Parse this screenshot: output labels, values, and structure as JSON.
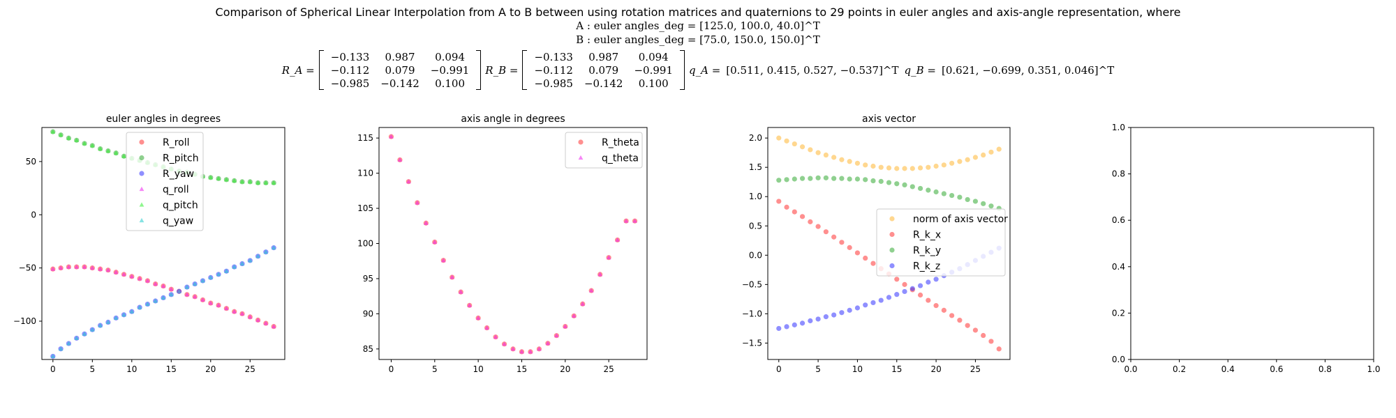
{
  "header": {
    "title": "Comparison of Spherical Linear Interpolation from A to B between using rotation matrices and quaternions to 29 points in euler angles and axis-angle representation, where",
    "eq_a": "A : euler angles_deg = [125.0, 100.0, 40.0]^T",
    "eq_b": "B : euler angles_deg = [75.0, 150.0, 150.0]^T",
    "ra_label": "R_A =",
    "rb_label": "R_B =",
    "qa_label": "q_A =",
    "qb_label": "q_B =",
    "ra_rows": [
      [
        "−0.133",
        "0.987",
        "0.094"
      ],
      [
        "−0.112",
        "0.079",
        "−0.991"
      ],
      [
        "−0.985",
        "−0.142",
        "0.100"
      ]
    ],
    "rb_rows": [
      [
        "−0.133",
        "0.987",
        "0.094"
      ],
      [
        "−0.112",
        "0.079",
        "−0.991"
      ],
      [
        "−0.985",
        "−0.142",
        "0.100"
      ]
    ],
    "qa_vec": "[0.511, 0.415, 0.527, −0.537]^T",
    "qb_vec": "[0.621, −0.699, 0.351, 0.046]^T"
  },
  "chart_data": [
    {
      "type": "scatter",
      "title": "euler angles in degrees",
      "xlabel": "",
      "ylabel": "",
      "xlim": [
        -1.4,
        29.4
      ],
      "ylim": [
        -136,
        82
      ],
      "xticks": [
        0,
        5,
        10,
        15,
        20,
        25
      ],
      "yticks": [
        -100,
        -50,
        0,
        50
      ],
      "x": [
        0,
        1,
        2,
        3,
        4,
        5,
        6,
        7,
        8,
        9,
        10,
        11,
        12,
        13,
        14,
        15,
        16,
        17,
        18,
        19,
        20,
        21,
        22,
        23,
        24,
        25,
        26,
        27,
        28
      ],
      "legend_position": "upper-center",
      "series": [
        {
          "name": "R_roll",
          "marker": "circle",
          "color": "#ff3333",
          "values": [
            -51,
            -50,
            -49,
            -49,
            -49,
            -50,
            -51,
            -52,
            -54,
            -56,
            -58,
            -60,
            -62,
            -65,
            -67,
            -70,
            -72,
            -75,
            -77,
            -80,
            -83,
            -85,
            -88,
            -91,
            -93,
            -96,
            -99,
            -102,
            -105
          ]
        },
        {
          "name": "R_pitch",
          "marker": "circle",
          "color": "#33aa33",
          "values": [
            78,
            75,
            72,
            70,
            67,
            65,
            62,
            60,
            58,
            55,
            53,
            51,
            49,
            47,
            45,
            43,
            41,
            40,
            38,
            36,
            35,
            34,
            33,
            32,
            31,
            31,
            30,
            30,
            30
          ]
        },
        {
          "name": "R_yaw",
          "marker": "circle",
          "color": "#3333ff",
          "values": [
            -133,
            -126,
            -121,
            -116,
            -112,
            -108,
            -104,
            -101,
            -97,
            -94,
            -91,
            -87,
            -84,
            -81,
            -78,
            -75,
            -72,
            -68,
            -65,
            -62,
            -59,
            -56,
            -53,
            -49,
            -46,
            -43,
            -39,
            -35,
            -31
          ]
        },
        {
          "name": "q_roll",
          "marker": "triangle",
          "color": "#ee22ee",
          "values": [
            -51,
            -50,
            -49,
            -49,
            -49,
            -50,
            -51,
            -52,
            -54,
            -56,
            -58,
            -60,
            -62,
            -65,
            -67,
            -70,
            -72,
            -75,
            -77,
            -80,
            -83,
            -85,
            -88,
            -91,
            -93,
            -96,
            -99,
            -102,
            -105
          ]
        },
        {
          "name": "q_pitch",
          "marker": "triangle",
          "color": "#33ee33",
          "values": [
            78,
            75,
            72,
            70,
            67,
            65,
            62,
            60,
            58,
            55,
            53,
            51,
            49,
            47,
            45,
            43,
            41,
            40,
            38,
            36,
            35,
            34,
            33,
            32,
            31,
            31,
            30,
            30,
            30
          ]
        },
        {
          "name": "q_yaw",
          "marker": "triangle",
          "color": "#22cccc",
          "values": [
            -133,
            -126,
            -121,
            -116,
            -112,
            -108,
            -104,
            -101,
            -97,
            -94,
            -91,
            -87,
            -84,
            -81,
            -78,
            -75,
            -72,
            -68,
            -65,
            -62,
            -59,
            -56,
            -53,
            -49,
            -46,
            -43,
            -39,
            -35,
            -31
          ]
        }
      ]
    },
    {
      "type": "scatter",
      "title": "axis angle in degrees",
      "xlabel": "",
      "ylabel": "",
      "xlim": [
        -1.4,
        29.4
      ],
      "ylim": [
        83.5,
        116.5
      ],
      "xticks": [
        0,
        5,
        10,
        15,
        20,
        25
      ],
      "yticks": [
        85,
        90,
        95,
        100,
        105,
        110,
        115
      ],
      "x": [
        0,
        1,
        2,
        3,
        4,
        5,
        6,
        7,
        8,
        9,
        10,
        11,
        12,
        13,
        14,
        15,
        16,
        17,
        18,
        19,
        20,
        21,
        22,
        23,
        24,
        25,
        26,
        27,
        28
      ],
      "legend_position": "upper-right",
      "series": [
        {
          "name": "R_theta",
          "marker": "circle",
          "color": "#ff3333",
          "values": [
            115.2,
            111.9,
            108.8,
            105.8,
            102.9,
            100.2,
            97.6,
            95.2,
            93.1,
            91.2,
            89.4,
            88.0,
            86.7,
            85.7,
            85.0,
            84.6,
            84.6,
            85.0,
            85.8,
            86.9,
            88.2,
            89.7,
            91.4,
            93.3,
            95.6,
            98.0,
            100.5,
            103.2,
            103.2
          ]
        },
        {
          "name": "q_theta",
          "marker": "triangle",
          "color": "#ee22ee",
          "values": [
            115.2,
            111.9,
            108.8,
            105.8,
            102.9,
            100.2,
            97.6,
            95.2,
            93.1,
            91.2,
            89.4,
            88.0,
            86.7,
            85.7,
            85.0,
            84.6,
            84.6,
            85.0,
            85.8,
            86.9,
            88.2,
            89.7,
            91.4,
            93.3,
            95.6,
            98.0,
            100.5,
            103.2,
            103.2
          ]
        }
      ]
    },
    {
      "type": "scatter",
      "title": "axis vector",
      "xlabel": "",
      "ylabel": "",
      "xlim": [
        -1.4,
        29.4
      ],
      "ylim": [
        -1.78,
        2.18
      ],
      "xticks": [
        0,
        5,
        10,
        15,
        20,
        25
      ],
      "yticks": [
        -1.5,
        -1.0,
        -0.5,
        0.0,
        0.5,
        1.0,
        1.5,
        2.0
      ],
      "x": [
        0,
        1,
        2,
        3,
        4,
        5,
        6,
        7,
        8,
        9,
        10,
        11,
        12,
        13,
        14,
        15,
        16,
        17,
        18,
        19,
        20,
        21,
        22,
        23,
        24,
        25,
        26,
        27,
        28
      ],
      "legend_position": "center-right",
      "series": [
        {
          "name": "norm of axis vector",
          "marker": "circle",
          "color": "#ffb733",
          "values": [
            2.0,
            1.95,
            1.9,
            1.85,
            1.8,
            1.75,
            1.71,
            1.67,
            1.63,
            1.6,
            1.57,
            1.54,
            1.52,
            1.5,
            1.49,
            1.48,
            1.48,
            1.48,
            1.49,
            1.5,
            1.52,
            1.54,
            1.57,
            1.6,
            1.63,
            1.67,
            1.71,
            1.76,
            1.81
          ]
        },
        {
          "name": "R_k_x",
          "marker": "circle",
          "color": "#ff3333",
          "values": [
            0.92,
            0.82,
            0.74,
            0.66,
            0.57,
            0.49,
            0.4,
            0.31,
            0.22,
            0.13,
            0.04,
            -0.05,
            -0.14,
            -0.23,
            -0.32,
            -0.41,
            -0.5,
            -0.59,
            -0.68,
            -0.77,
            -0.86,
            -0.94,
            -1.03,
            -1.11,
            -1.2,
            -1.28,
            -1.37,
            -1.47,
            -1.6
          ]
        },
        {
          "name": "R_k_y",
          "marker": "circle",
          "color": "#33aa33",
          "values": [
            1.28,
            1.29,
            1.3,
            1.31,
            1.31,
            1.32,
            1.32,
            1.31,
            1.31,
            1.3,
            1.3,
            1.29,
            1.27,
            1.26,
            1.24,
            1.22,
            1.2,
            1.17,
            1.14,
            1.11,
            1.08,
            1.05,
            1.02,
            0.99,
            0.95,
            0.92,
            0.88,
            0.84,
            0.8
          ]
        },
        {
          "name": "R_k_z",
          "marker": "circle",
          "color": "#3333ff",
          "values": [
            -1.25,
            -1.22,
            -1.19,
            -1.16,
            -1.12,
            -1.09,
            -1.05,
            -1.02,
            -0.98,
            -0.94,
            -0.9,
            -0.85,
            -0.81,
            -0.77,
            -0.72,
            -0.67,
            -0.62,
            -0.57,
            -0.52,
            -0.46,
            -0.41,
            -0.35,
            -0.29,
            -0.23,
            -0.16,
            -0.09,
            -0.02,
            0.05,
            0.12
          ]
        }
      ]
    },
    {
      "type": "scatter",
      "title": "",
      "xlabel": "",
      "ylabel": "",
      "xlim": [
        0,
        1
      ],
      "ylim": [
        0,
        1
      ],
      "xticks": [
        0.0,
        0.2,
        0.4,
        0.6,
        0.8,
        1.0
      ],
      "yticks": [
        0.0,
        0.2,
        0.4,
        0.6,
        0.8,
        1.0
      ],
      "tick_decimals": 1,
      "series": []
    }
  ]
}
